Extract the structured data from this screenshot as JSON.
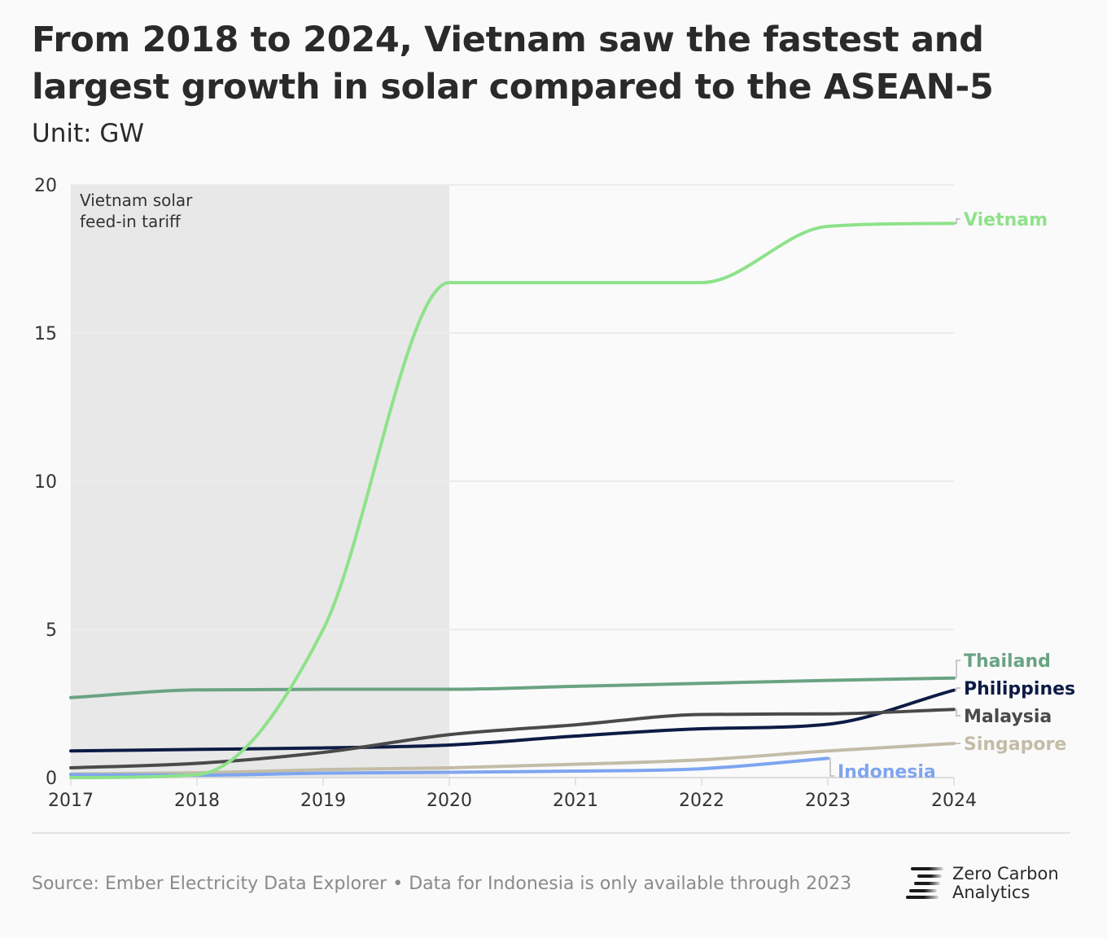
{
  "header": {
    "title": "From 2018 to 2024, Vietnam saw the fastest and largest growth in solar compared to the ASEAN-5",
    "subtitle": "Unit: GW"
  },
  "chart_data": {
    "type": "line",
    "title": "From 2018 to 2024, Vietnam saw the fastest and largest growth in solar compared to the ASEAN-5",
    "ylabel": "Unit: GW",
    "x": [
      2017,
      2018,
      2019,
      2020,
      2021,
      2022,
      2023,
      2024
    ],
    "xlim": [
      2017,
      2024
    ],
    "ylim": [
      0,
      20
    ],
    "yticks": [
      0,
      5,
      10,
      15,
      20
    ],
    "grid": true,
    "legend": "direct labels at line ends (right)",
    "annotation": {
      "text_line1": "Vietnam solar",
      "text_line2": "feed-in tariff",
      "x_range": [
        2017,
        2020
      ],
      "color": "#e8e8e8"
    },
    "series": [
      {
        "name": "Vietnam",
        "color": "#8ee28a",
        "values": [
          0.0,
          0.1,
          5.0,
          16.7,
          16.7,
          16.7,
          18.6,
          18.7
        ]
      },
      {
        "name": "Thailand",
        "color": "#6aa383",
        "values": [
          2.7,
          2.96,
          2.98,
          2.98,
          3.08,
          3.18,
          3.28,
          3.36
        ]
      },
      {
        "name": "Philippines",
        "color": "#0d1b45",
        "values": [
          0.9,
          0.95,
          1.0,
          1.1,
          1.4,
          1.65,
          1.8,
          2.95
        ]
      },
      {
        "name": "Malaysia",
        "color": "#4a4a4a",
        "values": [
          0.33,
          0.48,
          0.85,
          1.45,
          1.78,
          2.13,
          2.15,
          2.3
        ]
      },
      {
        "name": "Singapore",
        "color": "#c3bca8",
        "values": [
          0.12,
          0.16,
          0.27,
          0.33,
          0.45,
          0.6,
          0.9,
          1.15
        ]
      },
      {
        "name": "Indonesia",
        "color": "#7ea5f0",
        "values": [
          0.1,
          0.08,
          0.15,
          0.18,
          0.22,
          0.3,
          0.65,
          null
        ]
      }
    ]
  },
  "footer": {
    "source": "Source: Ember Electricity Data Explorer • Data for Indonesia is only available through 2023",
    "logo_line1": "Zero Carbon",
    "logo_line2": "Analytics"
  }
}
